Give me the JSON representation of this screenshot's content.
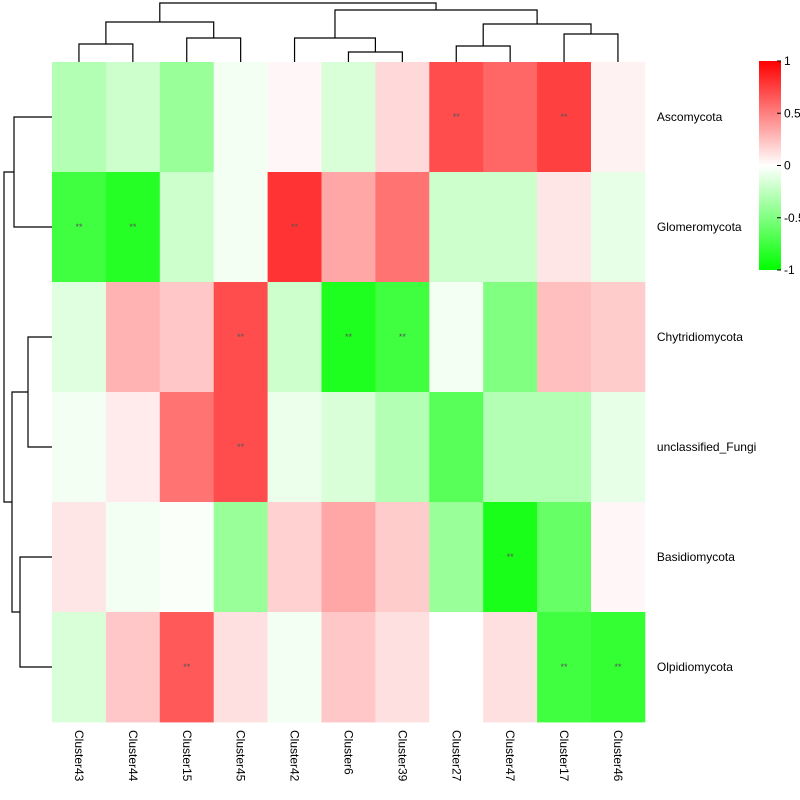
{
  "chart_data": {
    "type": "heatmap",
    "title": "",
    "rows": [
      "Ascomycota",
      "Glomeromycota",
      "Chytridiomycota",
      "unclassified_Fungi",
      "Basidiomycota",
      "Olpidiomycota"
    ],
    "columns": [
      "Cluster43",
      "Cluster44",
      "Cluster15",
      "Cluster45",
      "Cluster42",
      "Cluster6",
      "Cluster39",
      "Cluster27",
      "Cluster47",
      "Cluster17",
      "Cluster46"
    ],
    "values": [
      [
        -0.3,
        -0.2,
        -0.4,
        -0.05,
        0.03,
        -0.15,
        0.15,
        0.7,
        0.6,
        0.75,
        0.05
      ],
      [
        -0.75,
        -0.85,
        -0.2,
        -0.05,
        0.8,
        0.35,
        0.55,
        -0.2,
        -0.2,
        0.1,
        -0.1
      ],
      [
        -0.12,
        0.3,
        0.22,
        0.7,
        -0.2,
        -0.88,
        -0.75,
        -0.05,
        -0.5,
        0.25,
        0.2
      ],
      [
        -0.05,
        0.08,
        0.55,
        0.7,
        -0.08,
        -0.15,
        -0.3,
        -0.65,
        -0.3,
        -0.3,
        -0.1
      ],
      [
        0.1,
        -0.05,
        -0.02,
        -0.4,
        0.18,
        0.35,
        0.2,
        -0.4,
        -0.9,
        -0.6,
        0.03
      ],
      [
        -0.15,
        0.22,
        0.65,
        0.12,
        -0.05,
        0.22,
        0.12,
        0.0,
        0.12,
        -0.75,
        -0.8
      ]
    ],
    "significance": [
      [
        "",
        "",
        "",
        "",
        "",
        "",
        "",
        "**",
        "",
        "**",
        ""
      ],
      [
        "**",
        "**",
        "",
        "",
        "**",
        "",
        "",
        "",
        "",
        "",
        ""
      ],
      [
        "",
        "",
        "",
        "**",
        "",
        "**",
        "**",
        "",
        "",
        "",
        ""
      ],
      [
        "",
        "",
        "",
        "**",
        "",
        "",
        "",
        "",
        "",
        "",
        ""
      ],
      [
        "",
        "",
        "",
        "",
        "",
        "",
        "",
        "",
        "**",
        "",
        ""
      ],
      [
        "",
        "",
        "**",
        "",
        "",
        "",
        "",
        "",
        "",
        "**",
        "**"
      ]
    ],
    "color_scale": {
      "min": -1,
      "max": 1,
      "low_color": "#00ff00",
      "mid_color": "#ffffff",
      "high_color": "#ff0000",
      "ticks": [
        "1",
        "0.5",
        "0",
        "-0.5",
        "-1"
      ]
    },
    "row_dendrogram": true,
    "column_dendrogram": true,
    "legend_position": "right"
  }
}
